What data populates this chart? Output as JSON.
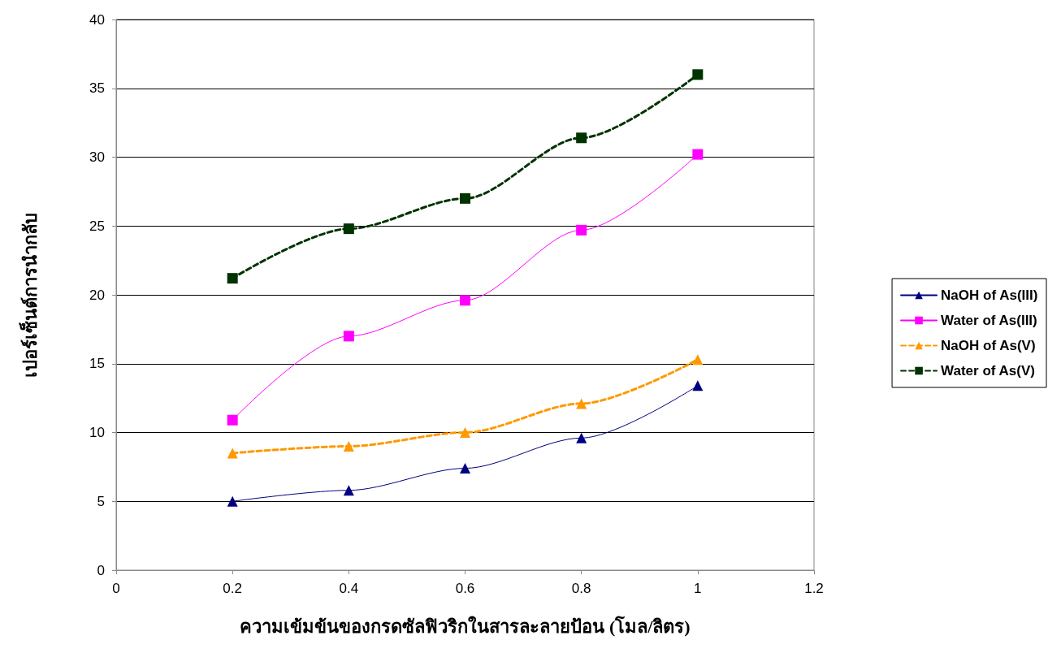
{
  "chart_data": {
    "type": "line",
    "xlabel": "ความเข้มข้นของกรดซัลฟิวริกในสารละลายป้อน (โมล/ลิตร)",
    "ylabel": "เปอร์เซ็นต์การนำกลับ",
    "x": [
      0.2,
      0.4,
      0.6,
      0.8,
      1
    ],
    "series": [
      {
        "name": "NaOH of As(III)",
        "color": "#000080",
        "marker": "triangle",
        "line_style": "solid",
        "values": [
          5.0,
          5.8,
          7.4,
          9.6,
          13.4
        ]
      },
      {
        "name": "Water of As(III)",
        "color": "#ff00ff",
        "marker": "square",
        "line_style": "solid",
        "values": [
          10.9,
          17.0,
          19.6,
          24.7,
          30.2
        ]
      },
      {
        "name": "NaOH of As(V)",
        "color": "#ff9900",
        "marker": "triangle",
        "line_style": "dashed",
        "values": [
          8.5,
          9.0,
          10.0,
          12.1,
          15.3
        ]
      },
      {
        "name": "Water of As(V)",
        "color": "#003300",
        "marker": "square",
        "line_style": "dashed",
        "values": [
          21.2,
          24.8,
          27.0,
          31.4,
          36.0
        ]
      }
    ],
    "xlim": [
      0,
      1.2
    ],
    "xticks": [
      0,
      0.2,
      0.4,
      0.6,
      0.8,
      1,
      1.2
    ],
    "ylim": [
      0,
      40
    ],
    "yticks": [
      0,
      5,
      10,
      15,
      20,
      25,
      30,
      35,
      40
    ],
    "grid": "y",
    "legend": "right"
  }
}
